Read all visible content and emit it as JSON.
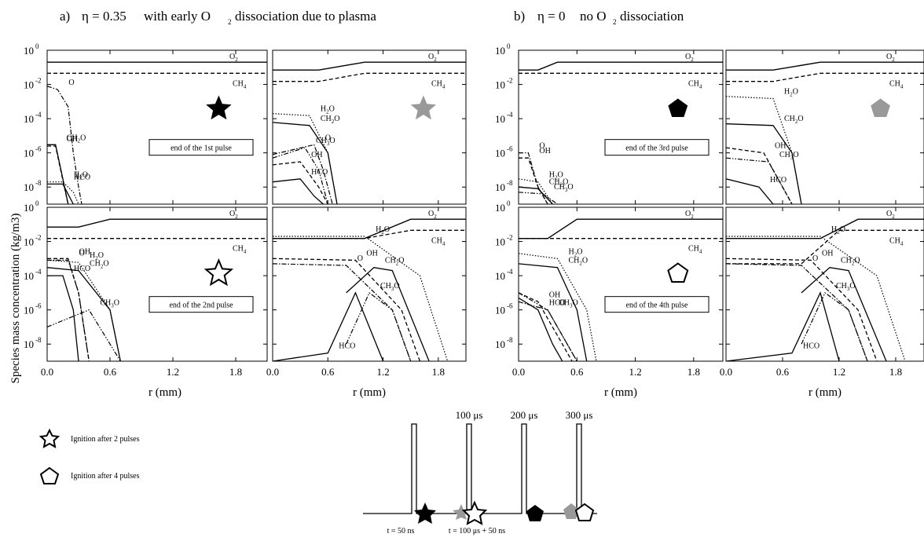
{
  "titles": {
    "a_prefix": "a)",
    "a_text": "with  early O",
    "a_suffix": "dissociation due to plasma",
    "a_eta": "η = 0.35",
    "a_sub": "2",
    "b_prefix": "b)",
    "b_eta": "η = 0",
    "b_text": "no  O",
    "b_sub": "2",
    "b_suffix": "dissociation"
  },
  "y_axis_label": "Species mass concentration (kg/m3)",
  "x_axis_label": "r (mm)",
  "x_ticks": [
    "0.0",
    "0.6",
    "1.2",
    "1.8"
  ],
  "y_ticks_base": "10",
  "y_ticks_exp": [
    "0",
    "-2",
    "-4",
    "-6",
    "-8"
  ],
  "pulse_boxes": [
    "end of the 1st pulse",
    "end of the 2nd pulse",
    "end of the 3rd pulse",
    "end of the 4th pulse"
  ],
  "legend": {
    "star": "Ignition after 2 pulses",
    "pentagon": "Ignition after 4 pulses"
  },
  "timing": {
    "labels": [
      "100 μs",
      "200 μs",
      "300 μs"
    ],
    "t1": "t = 50 ns",
    "t2": "t = 100 μs + 50 ns"
  },
  "colors": {
    "black": "#000000",
    "gray": "#999999"
  },
  "species": [
    "O2",
    "CH4",
    "H2O",
    "CH2O",
    "OH",
    "O",
    "CH3O",
    "HCO"
  ],
  "chart_data": {
    "type": "line",
    "x_unit": "mm",
    "xlim": [
      0,
      2.1
    ],
    "ylim": [
      -9,
      0
    ],
    "y_scale": "log",
    "panels": [
      {
        "id": "a-left",
        "label": "end of the 1st pulse",
        "marker": "filled black star",
        "series": [
          {
            "name": "O2",
            "x": [
              0,
              2.1
            ],
            "y": [
              0.2,
              0.2
            ]
          },
          {
            "name": "CH4",
            "x": [
              0,
              2.1
            ],
            "y": [
              0.045,
              0.045
            ]
          },
          {
            "name": "O",
            "x": [
              0,
              0.1,
              0.2,
              0.25,
              0.3,
              0.33
            ],
            "y": [
              0.008,
              0.005,
              0.0005,
              1e-06,
              1e-08,
              1e-09
            ]
          },
          {
            "name": "CH2O",
            "x": [
              0,
              0.08,
              0.15,
              0.2,
              0.25
            ],
            "y": [
              3e-06,
              3e-06,
              3e-08,
              1e-09,
              1e-10
            ]
          },
          {
            "name": "OH",
            "x": [
              0,
              0.08,
              0.15,
              0.2,
              0.25
            ],
            "y": [
              2.5e-06,
              2.5e-06,
              2.5e-08,
              1e-09,
              1e-10
            ]
          },
          {
            "name": "H2O",
            "x": [
              0,
              0.15,
              0.25,
              0.3
            ],
            "y": [
              2e-08,
              2e-08,
              5e-09,
              1e-09
            ]
          },
          {
            "name": "HCO",
            "x": [
              0,
              0.15,
              0.25
            ],
            "y": [
              1.5e-08,
              1.5e-08,
              1e-09
            ]
          }
        ]
      },
      {
        "id": "a-right",
        "label": "",
        "marker": "filled gray star",
        "series": [
          {
            "name": "O2",
            "x": [
              0,
              0.5,
              1.0,
              2.1
            ],
            "y": [
              0.07,
              0.07,
              0.2,
              0.2
            ]
          },
          {
            "name": "CH4",
            "x": [
              0,
              0.5,
              1.0,
              2.1
            ],
            "y": [
              0.015,
              0.015,
              0.045,
              0.045
            ]
          },
          {
            "name": "H2O",
            "x": [
              0,
              0.4,
              0.6,
              0.7
            ],
            "y": [
              0.0002,
              0.00015,
              1e-06,
              1e-09
            ]
          },
          {
            "name": "CH2O",
            "x": [
              0,
              0.4,
              0.6,
              0.7
            ],
            "y": [
              6e-05,
              4e-05,
              1e-06,
              1e-09
            ]
          },
          {
            "name": "CH3O",
            "x": [
              0,
              0.35,
              0.5,
              0.6
            ],
            "y": [
              5e-07,
              2e-06,
              1e-07,
              1e-09
            ]
          },
          {
            "name": "O",
            "x": [
              0,
              0.45,
              0.55,
              0.65
            ],
            "y": [
              8e-07,
              3e-06,
              1e-07,
              1e-09
            ]
          },
          {
            "name": "OH",
            "x": [
              0,
              0.3,
              0.5,
              0.6
            ],
            "y": [
              2e-07,
              3e-07,
              1e-08,
              1e-09
            ]
          },
          {
            "name": "HCO",
            "x": [
              0,
              0.3,
              0.45,
              0.55
            ],
            "y": [
              2e-08,
              3e-08,
              3e-09,
              1e-09
            ]
          }
        ]
      },
      {
        "id": "a-left-2",
        "label": "end of the 2nd pulse",
        "marker": "open black star",
        "series": [
          {
            "name": "O2",
            "x": [
              0,
              0.3,
              0.6,
              2.1
            ],
            "y": [
              0.07,
              0.07,
              0.2,
              0.2
            ]
          },
          {
            "name": "CH4",
            "x": [
              0,
              2.1
            ],
            "y": [
              0.015,
              0.015
            ]
          },
          {
            "name": "OH",
            "x": [
              0,
              0.2,
              0.3,
              0.4
            ],
            "y": [
              0.001,
              0.001,
              1e-05,
              1e-09
            ]
          },
          {
            "name": "O",
            "x": [
              0,
              0.2,
              0.3,
              0.4
            ],
            "y": [
              0.0008,
              0.0008,
              1e-05,
              1e-09
            ]
          },
          {
            "name": "H2O",
            "x": [
              0,
              0.3,
              0.6,
              0.7
            ],
            "y": [
              0.0008,
              0.0006,
              1e-06,
              1e-09
            ]
          },
          {
            "name": "CH2O",
            "x": [
              0,
              0.3,
              0.6,
              0.7
            ],
            "y": [
              0.0003,
              0.0002,
              1e-06,
              1e-09
            ]
          },
          {
            "name": "HCO",
            "x": [
              0,
              0.15,
              0.25,
              0.3
            ],
            "y": [
              0.0001,
              0.0001,
              1e-06,
              1e-09
            ]
          },
          {
            "name": "CH3O",
            "x": [
              0,
              0.4,
              0.6,
              0.7
            ],
            "y": [
              1e-07,
              1e-06,
              1e-08,
              1e-09
            ]
          }
        ]
      },
      {
        "id": "a-right-2",
        "label": "",
        "marker": "",
        "series": [
          {
            "name": "O2",
            "x": [
              0,
              1.0,
              1.5,
              2.1
            ],
            "y": [
              0.015,
              0.015,
              0.2,
              0.2
            ]
          },
          {
            "name": "CH4",
            "x": [
              0,
              1.0,
              1.5,
              2.1
            ],
            "y": [
              0.015,
              0.015,
              0.045,
              0.045
            ]
          },
          {
            "name": "H2O",
            "x": [
              0,
              1.0,
              1.6,
              1.9
            ],
            "y": [
              0.02,
              0.02,
              0.0001,
              1e-09
            ]
          },
          {
            "name": "OH",
            "x": [
              0,
              0.9,
              1.4,
              1.6
            ],
            "y": [
              0.001,
              0.0008,
              1e-06,
              1e-09
            ]
          },
          {
            "name": "O",
            "x": [
              0,
              0.8,
              1.3,
              1.5
            ],
            "y": [
              0.0005,
              0.0004,
              1e-06,
              1e-09
            ]
          },
          {
            "name": "CH2O",
            "x": [
              0.8,
              1.1,
              1.3,
              1.7
            ],
            "y": [
              1e-05,
              0.0003,
              0.0002,
              1e-09
            ]
          },
          {
            "name": "CH3O",
            "x": [
              0.8,
              1.05,
              1.3,
              1.5
            ],
            "y": [
              1e-08,
              1e-05,
              1e-06,
              1e-09
            ]
          },
          {
            "name": "HCO",
            "x": [
              0,
              0.6,
              0.9,
              1.2
            ],
            "y": [
              1e-09,
              3e-09,
              1e-05,
              1e-09
            ]
          }
        ]
      },
      {
        "id": "b-left",
        "label": "end of the 3rd pulse",
        "marker": "filled black pentagon",
        "series": [
          {
            "name": "O2",
            "x": [
              0,
              0.2,
              0.4,
              2.1
            ],
            "y": [
              0.07,
              0.07,
              0.2,
              0.2
            ]
          },
          {
            "name": "CH4",
            "x": [
              0,
              2.1
            ],
            "y": [
              0.045,
              0.045
            ]
          },
          {
            "name": "O",
            "x": [
              0,
              0.1,
              0.2,
              0.3
            ],
            "y": [
              1e-06,
              1e-06,
              1e-08,
              1e-09
            ]
          },
          {
            "name": "OH",
            "x": [
              0,
              0.1,
              0.2,
              0.3
            ],
            "y": [
              5e-07,
              5e-07,
              1e-08,
              1e-09
            ]
          },
          {
            "name": "H2O",
            "x": [
              0,
              0.2,
              0.35
            ],
            "y": [
              3e-08,
              2e-08,
              1e-09
            ]
          },
          {
            "name": "CH2O",
            "x": [
              0,
              0.2,
              0.35
            ],
            "y": [
              1e-08,
              8e-09,
              1e-09
            ]
          },
          {
            "name": "CH3O",
            "x": [
              0,
              0.25,
              0.4
            ],
            "y": [
              5e-09,
              4e-09,
              1e-09
            ]
          }
        ]
      },
      {
        "id": "b-right",
        "label": "",
        "marker": "filled gray pentagon",
        "series": [
          {
            "name": "O2",
            "x": [
              0,
              0.5,
              1.0,
              2.1
            ],
            "y": [
              0.07,
              0.07,
              0.2,
              0.2
            ]
          },
          {
            "name": "CH4",
            "x": [
              0,
              0.5,
              1.0,
              2.1
            ],
            "y": [
              0.015,
              0.015,
              0.045,
              0.045
            ]
          },
          {
            "name": "H2O",
            "x": [
              0,
              0.5,
              0.7,
              0.8
            ],
            "y": [
              0.002,
              0.0015,
              1e-06,
              1e-09
            ]
          },
          {
            "name": "CH2O",
            "x": [
              0,
              0.5,
              0.7,
              0.8
            ],
            "y": [
              5e-05,
              4e-05,
              1e-06,
              1e-09
            ]
          },
          {
            "name": "OH",
            "x": [
              0,
              0.4,
              0.6,
              0.7
            ],
            "y": [
              2e-06,
              1e-06,
              1e-08,
              1e-09
            ]
          },
          {
            "name": "CH3O",
            "x": [
              0,
              0.45,
              0.6,
              0.7
            ],
            "y": [
              5e-07,
              3e-07,
              1e-08,
              1e-09
            ]
          },
          {
            "name": "HCO",
            "x": [
              0,
              0.35,
              0.5,
              0.6
            ],
            "y": [
              3e-08,
              1e-08,
              1e-09,
              1e-09
            ]
          }
        ]
      },
      {
        "id": "b-left-2",
        "label": "end of the 4th pulse",
        "marker": "open black pentagon",
        "series": [
          {
            "name": "O2",
            "x": [
              0,
              0.3,
              0.6,
              2.1
            ],
            "y": [
              0.015,
              0.015,
              0.2,
              0.2
            ]
          },
          {
            "name": "CH4",
            "x": [
              0,
              2.1
            ],
            "y": [
              0.015,
              0.015
            ]
          },
          {
            "name": "H2O",
            "x": [
              0,
              0.4,
              0.7,
              0.8
            ],
            "y": [
              0.002,
              0.001,
              1e-06,
              1e-09
            ]
          },
          {
            "name": "CH2O",
            "x": [
              0,
              0.4,
              0.6,
              0.7
            ],
            "y": [
              0.0005,
              0.0003,
              1e-06,
              1e-09
            ]
          },
          {
            "name": "OH",
            "x": [
              0,
              0.2,
              0.45,
              0.55
            ],
            "y": [
              1e-05,
              3e-06,
              1e-08,
              1e-09
            ]
          },
          {
            "name": "CH3O",
            "x": [
              0,
              0.3,
              0.5,
              0.6
            ],
            "y": [
              1e-05,
              1e-06,
              1e-08,
              1e-09
            ]
          },
          {
            "name": "HCO",
            "x": [
              0,
              0.2,
              0.35,
              0.45
            ],
            "y": [
              5e-06,
              1e-06,
              1e-08,
              1e-09
            ]
          },
          {
            "name": "O",
            "x": [
              0,
              0.3,
              0.5,
              0.6
            ],
            "y": [
              3e-06,
              1e-06,
              1e-08,
              1e-09
            ]
          }
        ]
      },
      {
        "id": "b-right-2",
        "label": "",
        "marker": "",
        "series": [
          {
            "name": "O2",
            "x": [
              0,
              1.0,
              1.4,
              2.1
            ],
            "y": [
              0.015,
              0.015,
              0.2,
              0.2
            ]
          },
          {
            "name": "CH4",
            "x": [
              0,
              0.8,
              1.2,
              2.1
            ],
            "y": [
              0.0005,
              0.0005,
              0.045,
              0.045
            ]
          },
          {
            "name": "H2O",
            "x": [
              0,
              1.0,
              1.6,
              1.9
            ],
            "y": [
              0.02,
              0.02,
              0.0001,
              1e-09
            ]
          },
          {
            "name": "OH",
            "x": [
              0,
              0.9,
              1.4,
              1.6
            ],
            "y": [
              0.001,
              0.0008,
              1e-06,
              1e-09
            ]
          },
          {
            "name": "O",
            "x": [
              0,
              0.8,
              1.3,
              1.5
            ],
            "y": [
              0.0005,
              0.0004,
              1e-06,
              1e-09
            ]
          },
          {
            "name": "CH2O",
            "x": [
              0.8,
              1.1,
              1.3,
              1.7
            ],
            "y": [
              1e-05,
              0.0003,
              0.0002,
              1e-09
            ]
          },
          {
            "name": "CH3O",
            "x": [
              0.8,
              1.05,
              1.3,
              1.5
            ],
            "y": [
              1e-08,
              1e-05,
              1e-06,
              1e-09
            ]
          },
          {
            "name": "HCO",
            "x": [
              0,
              0.7,
              1.0,
              1.2
            ],
            "y": [
              1e-09,
              3e-09,
              1e-05,
              1e-09
            ]
          }
        ]
      }
    ]
  }
}
